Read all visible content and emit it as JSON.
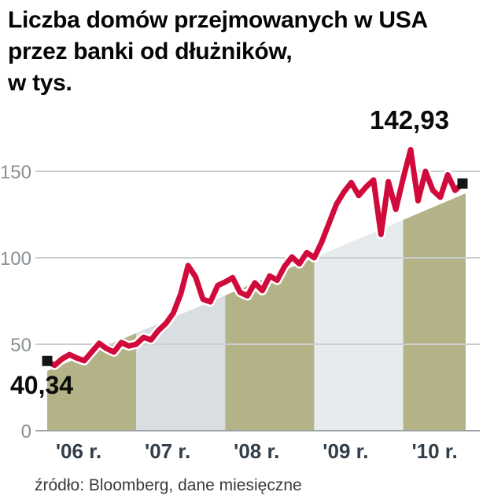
{
  "title": {
    "line1": "Liczba domów przejmowanych w USA",
    "line2": "przez banki od dłużników,",
    "line3": "w tys."
  },
  "annotations": {
    "start": "40,34",
    "end": "142,93"
  },
  "source": "źródło: Bloomberg, dane miesięczne",
  "chart_data": {
    "type": "line",
    "title": "Liczba domów przejmowanych w USA przez banki od dłużników, w tys.",
    "x_unit": "monthly, Jan 2006 – Sep 2010",
    "categories_years": [
      "'06 r.",
      "'07 r.",
      "'08 r.",
      "'09 r.",
      "'10 r."
    ],
    "values": [
      40.34,
      37.8,
      41.5,
      44.0,
      42.0,
      40.5,
      45.5,
      50.5,
      47.5,
      45.5,
      51.0,
      49.0,
      50.0,
      54.0,
      52.5,
      58.0,
      62.0,
      68.0,
      79.0,
      95.5,
      89.0,
      76.0,
      74.5,
      84.0,
      86.0,
      88.5,
      80.0,
      78.0,
      85.5,
      81.0,
      89.5,
      87.0,
      95.0,
      100.5,
      96.5,
      103.0,
      100.0,
      109.0,
      120.0,
      131.0,
      138.0,
      143.5,
      136.0,
      141.0,
      145.0,
      113.5,
      144.0,
      128.0,
      146.0,
      162.5,
      133.0,
      150.0,
      139.0,
      135.0,
      148.0,
      139.0,
      142.93
    ],
    "first_value": 40.34,
    "first_value_label": "40,34",
    "last_value": 142.93,
    "last_value_label": "142,93",
    "ylim": [
      0,
      175
    ],
    "yticks": [
      0,
      50,
      100,
      150
    ],
    "grid": "horizontal",
    "legend": "none",
    "line_color": "#d10a3c",
    "line_casing_color": "#ffffff",
    "marker_color": "#141414",
    "grid_color": "#cbced0",
    "axis_color": "#9da2a6",
    "ytick_color": "#8a8f93",
    "xlabel_color": "#333e48",
    "band_colors": [
      "#b4b287",
      "#d8dee1",
      "#b4b287",
      "#e6ebed",
      "#b4b287"
    ],
    "source": "źródło: Bloomberg, dane miesięczne"
  }
}
